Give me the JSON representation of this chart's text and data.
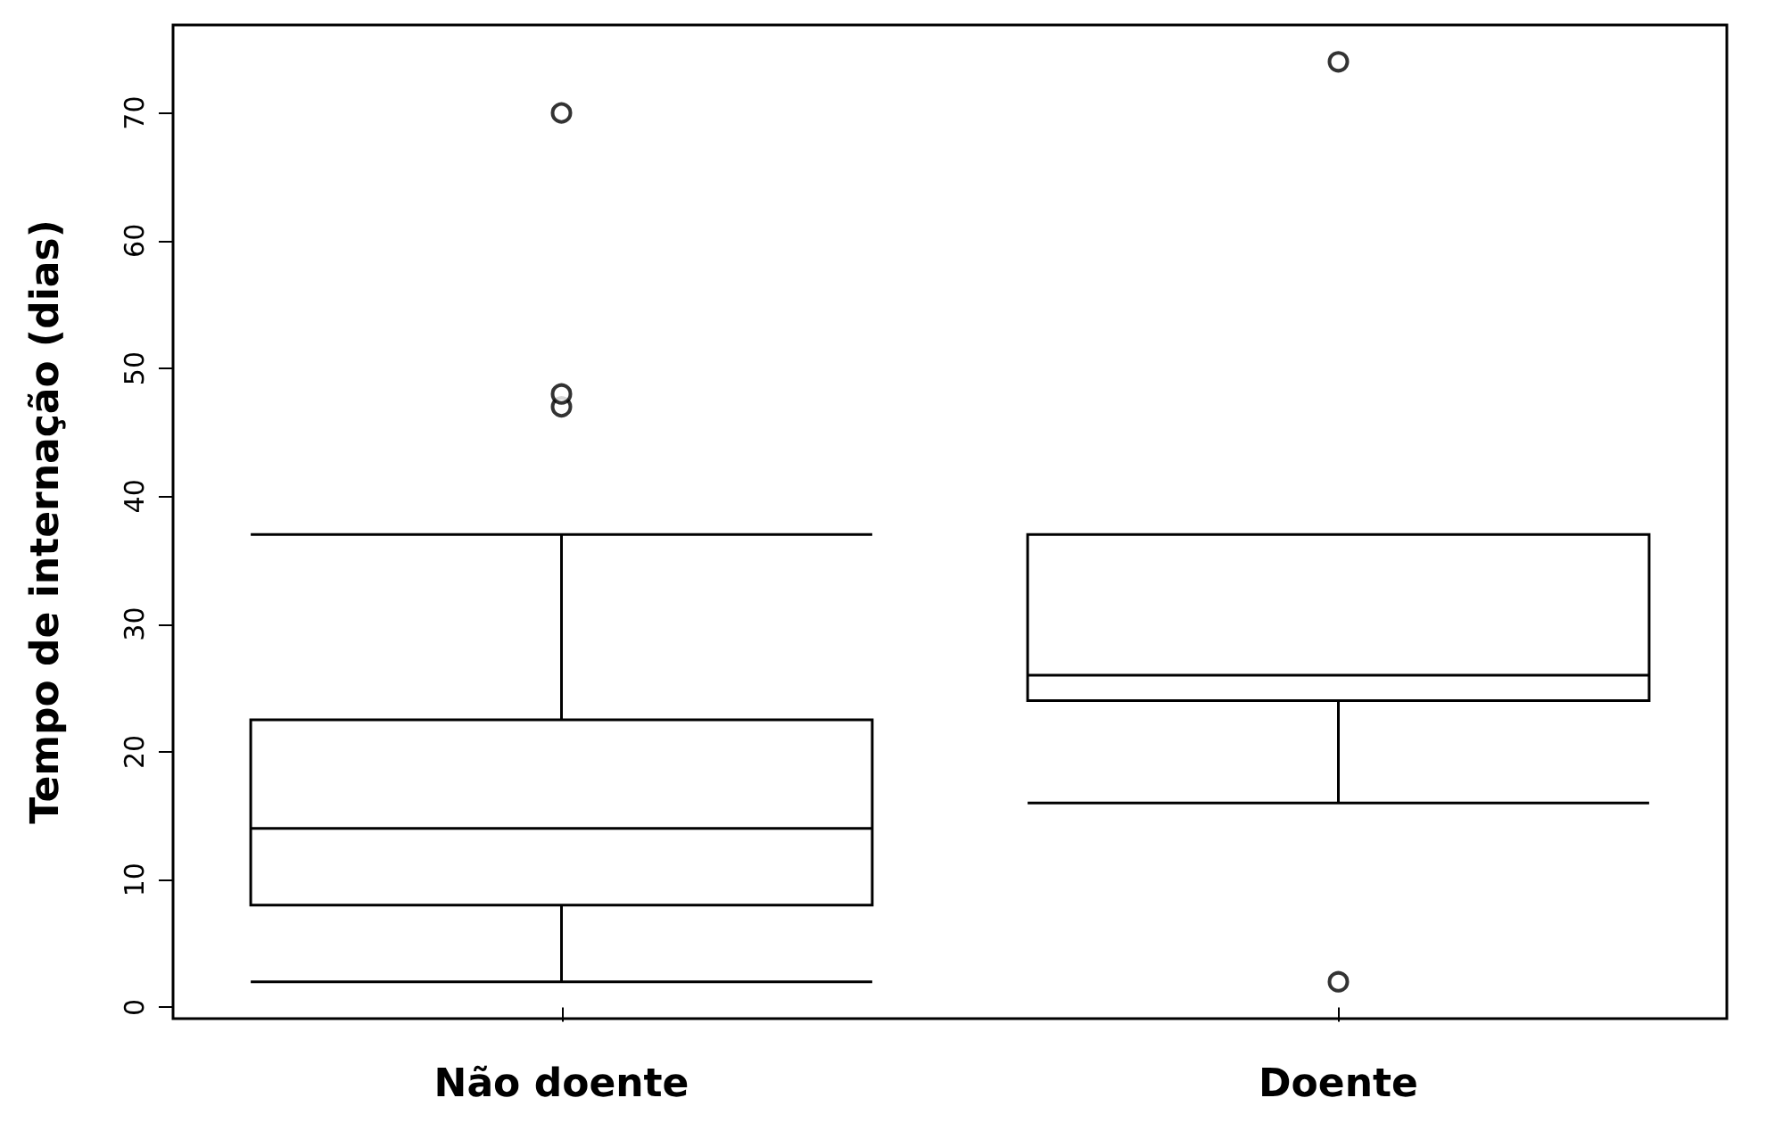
{
  "chart_data": {
    "type": "box",
    "ylabel": "Tempo de internação (dias)",
    "categories": [
      "Não doente",
      "Doente"
    ],
    "boxes": [
      {
        "low": 2,
        "q1": 8,
        "median": 14,
        "q3": 22.5,
        "high": 37,
        "outliers": [
          47,
          48,
          70
        ]
      },
      {
        "low": 16,
        "q1": 24,
        "median": 26,
        "q3": 37,
        "high": 37,
        "outliers": [
          2,
          74
        ]
      }
    ],
    "color": "#000000",
    "ylim": [
      -0.88,
      76.88
    ],
    "yticks": [
      0,
      10,
      20,
      30,
      40,
      50,
      60,
      70
    ],
    "grid": false
  }
}
